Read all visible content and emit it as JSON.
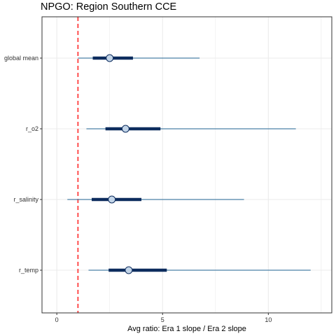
{
  "chart_data": {
    "type": "interval",
    "title": "NPGO: Region Southern CCE",
    "xlabel": "Avg ratio: Era 1 slope / Era 2 slope",
    "ylabel": "",
    "xlim": [
      -0.7,
      13.0
    ],
    "xticks": [
      0,
      5,
      10
    ],
    "reference_line": {
      "x": 1,
      "style": "dashed",
      "color": "#ff4d4d"
    },
    "grid": true,
    "categories": [
      "global mean",
      "r_o2",
      "r_salinity",
      "r_temp"
    ],
    "series": [
      {
        "category": "global mean",
        "median": 2.5,
        "inner": [
          1.7,
          3.6
        ],
        "outer": [
          1.0,
          6.75
        ]
      },
      {
        "category": "r_o2",
        "median": 3.25,
        "inner": [
          2.3,
          4.9
        ],
        "outer": [
          1.4,
          11.3
        ]
      },
      {
        "category": "r_salinity",
        "median": 2.6,
        "inner": [
          1.65,
          4.0
        ],
        "outer": [
          0.5,
          8.85
        ]
      },
      {
        "category": "r_temp",
        "median": 3.4,
        "inner": [
          2.45,
          5.2
        ],
        "outer": [
          1.5,
          12.0
        ]
      }
    ],
    "colors": {
      "outer_line": "#4a80a6",
      "inner_line": "#0d2c5e",
      "point_fill": "#c3d5e8",
      "point_stroke": "#0d2c5e",
      "grid": "#ebebeb",
      "panel_border": "#333333"
    }
  }
}
